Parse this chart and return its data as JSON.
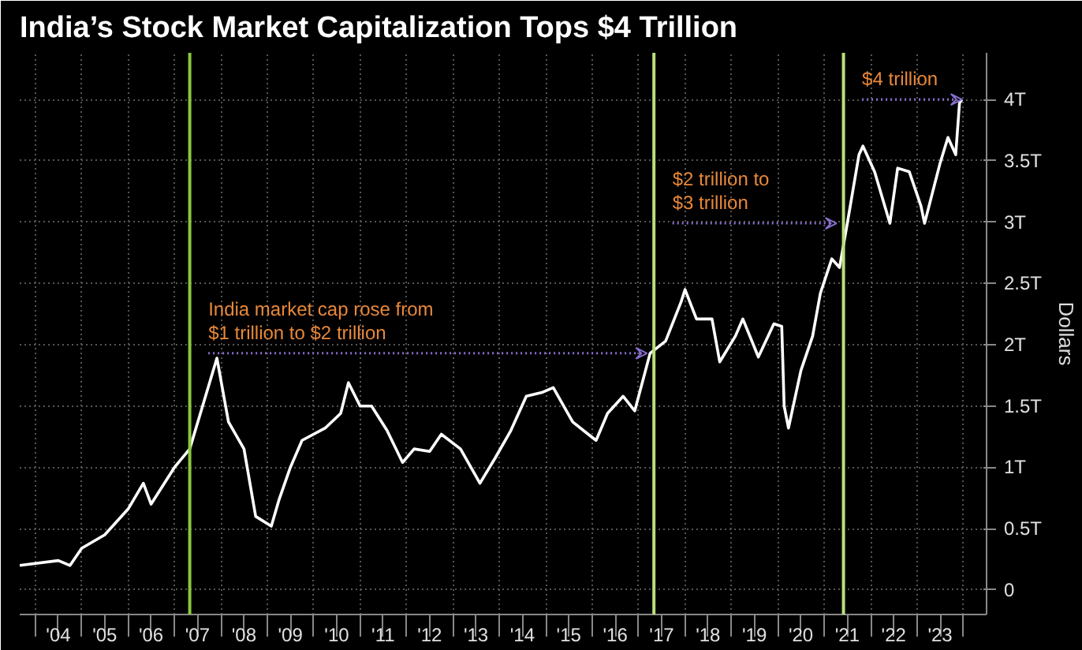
{
  "chart_data": {
    "type": "line",
    "title": "India’s Stock Market Capitalization Tops $4 Trillion",
    "ylabel": "Dollars",
    "x": [
      "2003-09",
      "2004-07",
      "2004-10",
      "2005-01",
      "2005-07",
      "2006-01",
      "2006-05",
      "2006-07",
      "2007-01",
      "2007-05",
      "2007-12",
      "2008-03",
      "2008-07",
      "2008-10",
      "2009-02",
      "2009-04",
      "2009-07",
      "2009-10",
      "2010-04",
      "2010-08",
      "2010-10",
      "2011-01",
      "2011-04",
      "2011-08",
      "2011-12",
      "2012-03",
      "2012-07",
      "2012-10",
      "2013-03",
      "2013-08",
      "2013-12",
      "2014-04",
      "2014-08",
      "2014-12",
      "2015-03",
      "2015-08",
      "2015-12",
      "2016-02",
      "2016-05",
      "2016-09",
      "2016-12",
      "2017-04",
      "2017-08",
      "2017-12",
      "2018-01",
      "2018-04",
      "2018-08",
      "2018-10",
      "2019-02",
      "2019-04",
      "2019-08",
      "2019-12",
      "2020-02-01",
      "2020-02-20",
      "2020-03-25",
      "2020-07",
      "2020-10",
      "2020-12",
      "2021-03",
      "2021-05",
      "2021-07",
      "2021-10",
      "2021-11",
      "2022-02",
      "2022-06",
      "2022-08",
      "2022-11",
      "2023-02",
      "2023-03",
      "2023-07",
      "2023-09",
      "2023-11",
      "2023-12-01",
      "2023-12-20"
    ],
    "series": [
      {
        "color": "#ffffff",
        "values": [
          0.2,
          0.24,
          0.2,
          0.34,
          0.45,
          0.66,
          0.87,
          0.7,
          1.0,
          1.15,
          1.89,
          1.37,
          1.15,
          0.6,
          0.52,
          0.73,
          1.0,
          1.22,
          1.32,
          1.44,
          1.69,
          1.5,
          1.5,
          1.3,
          1.04,
          1.15,
          1.13,
          1.27,
          1.15,
          0.87,
          1.08,
          1.3,
          1.58,
          1.61,
          1.65,
          1.37,
          1.27,
          1.22,
          1.44,
          1.58,
          1.46,
          1.93,
          2.03,
          2.35,
          2.45,
          2.21,
          2.21,
          1.86,
          2.07,
          2.21,
          1.9,
          2.17,
          2.15,
          1.5,
          1.32,
          1.79,
          2.07,
          2.42,
          2.7,
          2.63,
          2.99,
          3.55,
          3.62,
          3.41,
          2.99,
          3.44,
          3.41,
          3.13,
          2.99,
          3.48,
          3.69,
          3.55,
          3.97,
          4.0
        ]
      }
    ],
    "xlim": [
      "2003-09",
      "2024-07"
    ],
    "ylim": [
      -0.2,
      4.38
    ],
    "xticks": [
      {
        "value": "2004",
        "label": null
      },
      {
        "value": "2005",
        "label": null
      },
      {
        "value": "2006",
        "label": null
      },
      {
        "value": "2007",
        "label": null
      },
      {
        "value": "2008",
        "label": null
      },
      {
        "value": "2009",
        "label": null
      },
      {
        "value": "2010",
        "label": null
      },
      {
        "value": "2011",
        "label": null
      },
      {
        "value": "2012",
        "label": null
      },
      {
        "value": "2013",
        "label": null
      },
      {
        "value": "2014",
        "label": null
      },
      {
        "value": "2015",
        "label": null
      },
      {
        "value": "2016",
        "label": null
      },
      {
        "value": "2017",
        "label": null
      },
      {
        "value": "2018",
        "label": null
      },
      {
        "value": "2019",
        "label": null
      },
      {
        "value": "2020",
        "label": null
      },
      {
        "value": "2021",
        "label": null
      },
      {
        "value": "2022",
        "label": null
      },
      {
        "value": "2023",
        "label": null
      },
      {
        "value": "2024",
        "label": null
      },
      {
        "value": "2004-07",
        "label": "'04"
      },
      {
        "value": "2005-07",
        "label": "'05"
      },
      {
        "value": "2006-07",
        "label": "'06"
      },
      {
        "value": "2007-07",
        "label": "'07"
      },
      {
        "value": "2008-07",
        "label": "'08"
      },
      {
        "value": "2009-07",
        "label": "'09"
      },
      {
        "value": "2010-07",
        "label": "'10"
      },
      {
        "value": "2011-07",
        "label": "'11"
      },
      {
        "value": "2012-07",
        "label": "'12"
      },
      {
        "value": "2013-07",
        "label": "'13"
      },
      {
        "value": "2014-07",
        "label": "'14"
      },
      {
        "value": "2015-07",
        "label": "'15"
      },
      {
        "value": "2016-07",
        "label": "'16"
      },
      {
        "value": "2017-07",
        "label": "'17"
      },
      {
        "value": "2018-07",
        "label": "'18"
      },
      {
        "value": "2019-07",
        "label": "'19"
      },
      {
        "value": "2020-07",
        "label": "'20"
      },
      {
        "value": "2021-07",
        "label": "'21"
      },
      {
        "value": "2022-07",
        "label": "'22"
      },
      {
        "value": "2023-07",
        "label": "'23"
      }
    ],
    "yticks": [
      0,
      {
        "value": 0.5,
        "label": "0.5T"
      },
      {
        "value": 1,
        "label": "1T"
      },
      {
        "value": 1.5,
        "label": "1.5T"
      },
      {
        "value": 2,
        "label": "2T"
      },
      {
        "value": 2.5,
        "label": "2.5T"
      },
      {
        "value": 3,
        "label": "3T"
      },
      {
        "value": 3.5,
        "label": "3.5T"
      },
      {
        "value": 4,
        "label": "4T"
      }
    ],
    "ref_lines": [
      {
        "axis": "x",
        "value": "2007-05",
        "color": "#8cc63e"
      },
      {
        "axis": "x",
        "value": "2017-05",
        "color": "#b9e07a"
      },
      {
        "axis": "x",
        "value": "2021-06",
        "color": "#b9e07a"
      }
    ],
    "annotations": [
      "India market cap rose from\n$1 trillion to $2 trillion",
      "$2 trillion to\n$3 trillion",
      "$4 trillion"
    ],
    "grid": true,
    "marker": "none",
    "line_style": "solid"
  }
}
